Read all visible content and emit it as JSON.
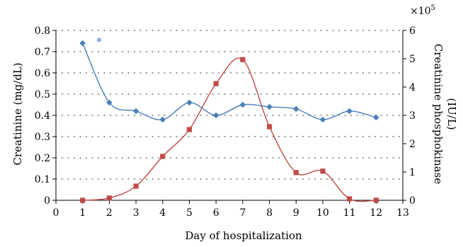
{
  "chart_data": {
    "type": "line",
    "xlabel": "Day of hospitalization",
    "ylabel_left": "Creatinine (mg/dL)",
    "ylabel_right_line1": "Creatinine phosphokinase",
    "ylabel_right_line2": "(IU/L)",
    "right_axis_multiplier": "×10",
    "right_axis_exponent": "5",
    "annotation": "*",
    "x_ticks": [
      0,
      1,
      2,
      3,
      4,
      5,
      6,
      7,
      8,
      9,
      10,
      11,
      12,
      13
    ],
    "left_ticks": [
      "0",
      "0.1",
      "0.2",
      "0.3",
      "0.4",
      "0.5",
      "0.6",
      "0.7",
      "0.8"
    ],
    "right_ticks": [
      "0",
      "1",
      "2",
      "3",
      "4",
      "5",
      "6"
    ],
    "xlim": [
      0,
      13
    ],
    "ylim_left": [
      0,
      0.8
    ],
    "ylim_right": [
      0,
      6
    ],
    "grid": "dotted horizontal",
    "colors": {
      "creatinine": "#4a7ebb",
      "cpk": "#be4b48"
    },
    "series": [
      {
        "axis": "left",
        "marker": "diamond",
        "x": [
          1,
          2,
          3,
          4,
          5,
          6,
          7,
          8,
          9,
          10,
          11,
          12
        ],
        "values": [
          0.74,
          0.46,
          0.42,
          0.38,
          0.46,
          0.4,
          0.45,
          0.44,
          0.43,
          0.38,
          0.42,
          0.39
        ]
      },
      {
        "axis": "right",
        "marker": "square",
        "x": [
          1,
          2,
          3,
          4,
          5,
          6,
          7,
          8,
          9,
          10,
          11,
          12
        ],
        "values": [
          0.0,
          0.08,
          0.5,
          1.55,
          2.5,
          4.12,
          4.97,
          2.6,
          0.98,
          1.03,
          0.05,
          0.0
        ]
      }
    ]
  }
}
